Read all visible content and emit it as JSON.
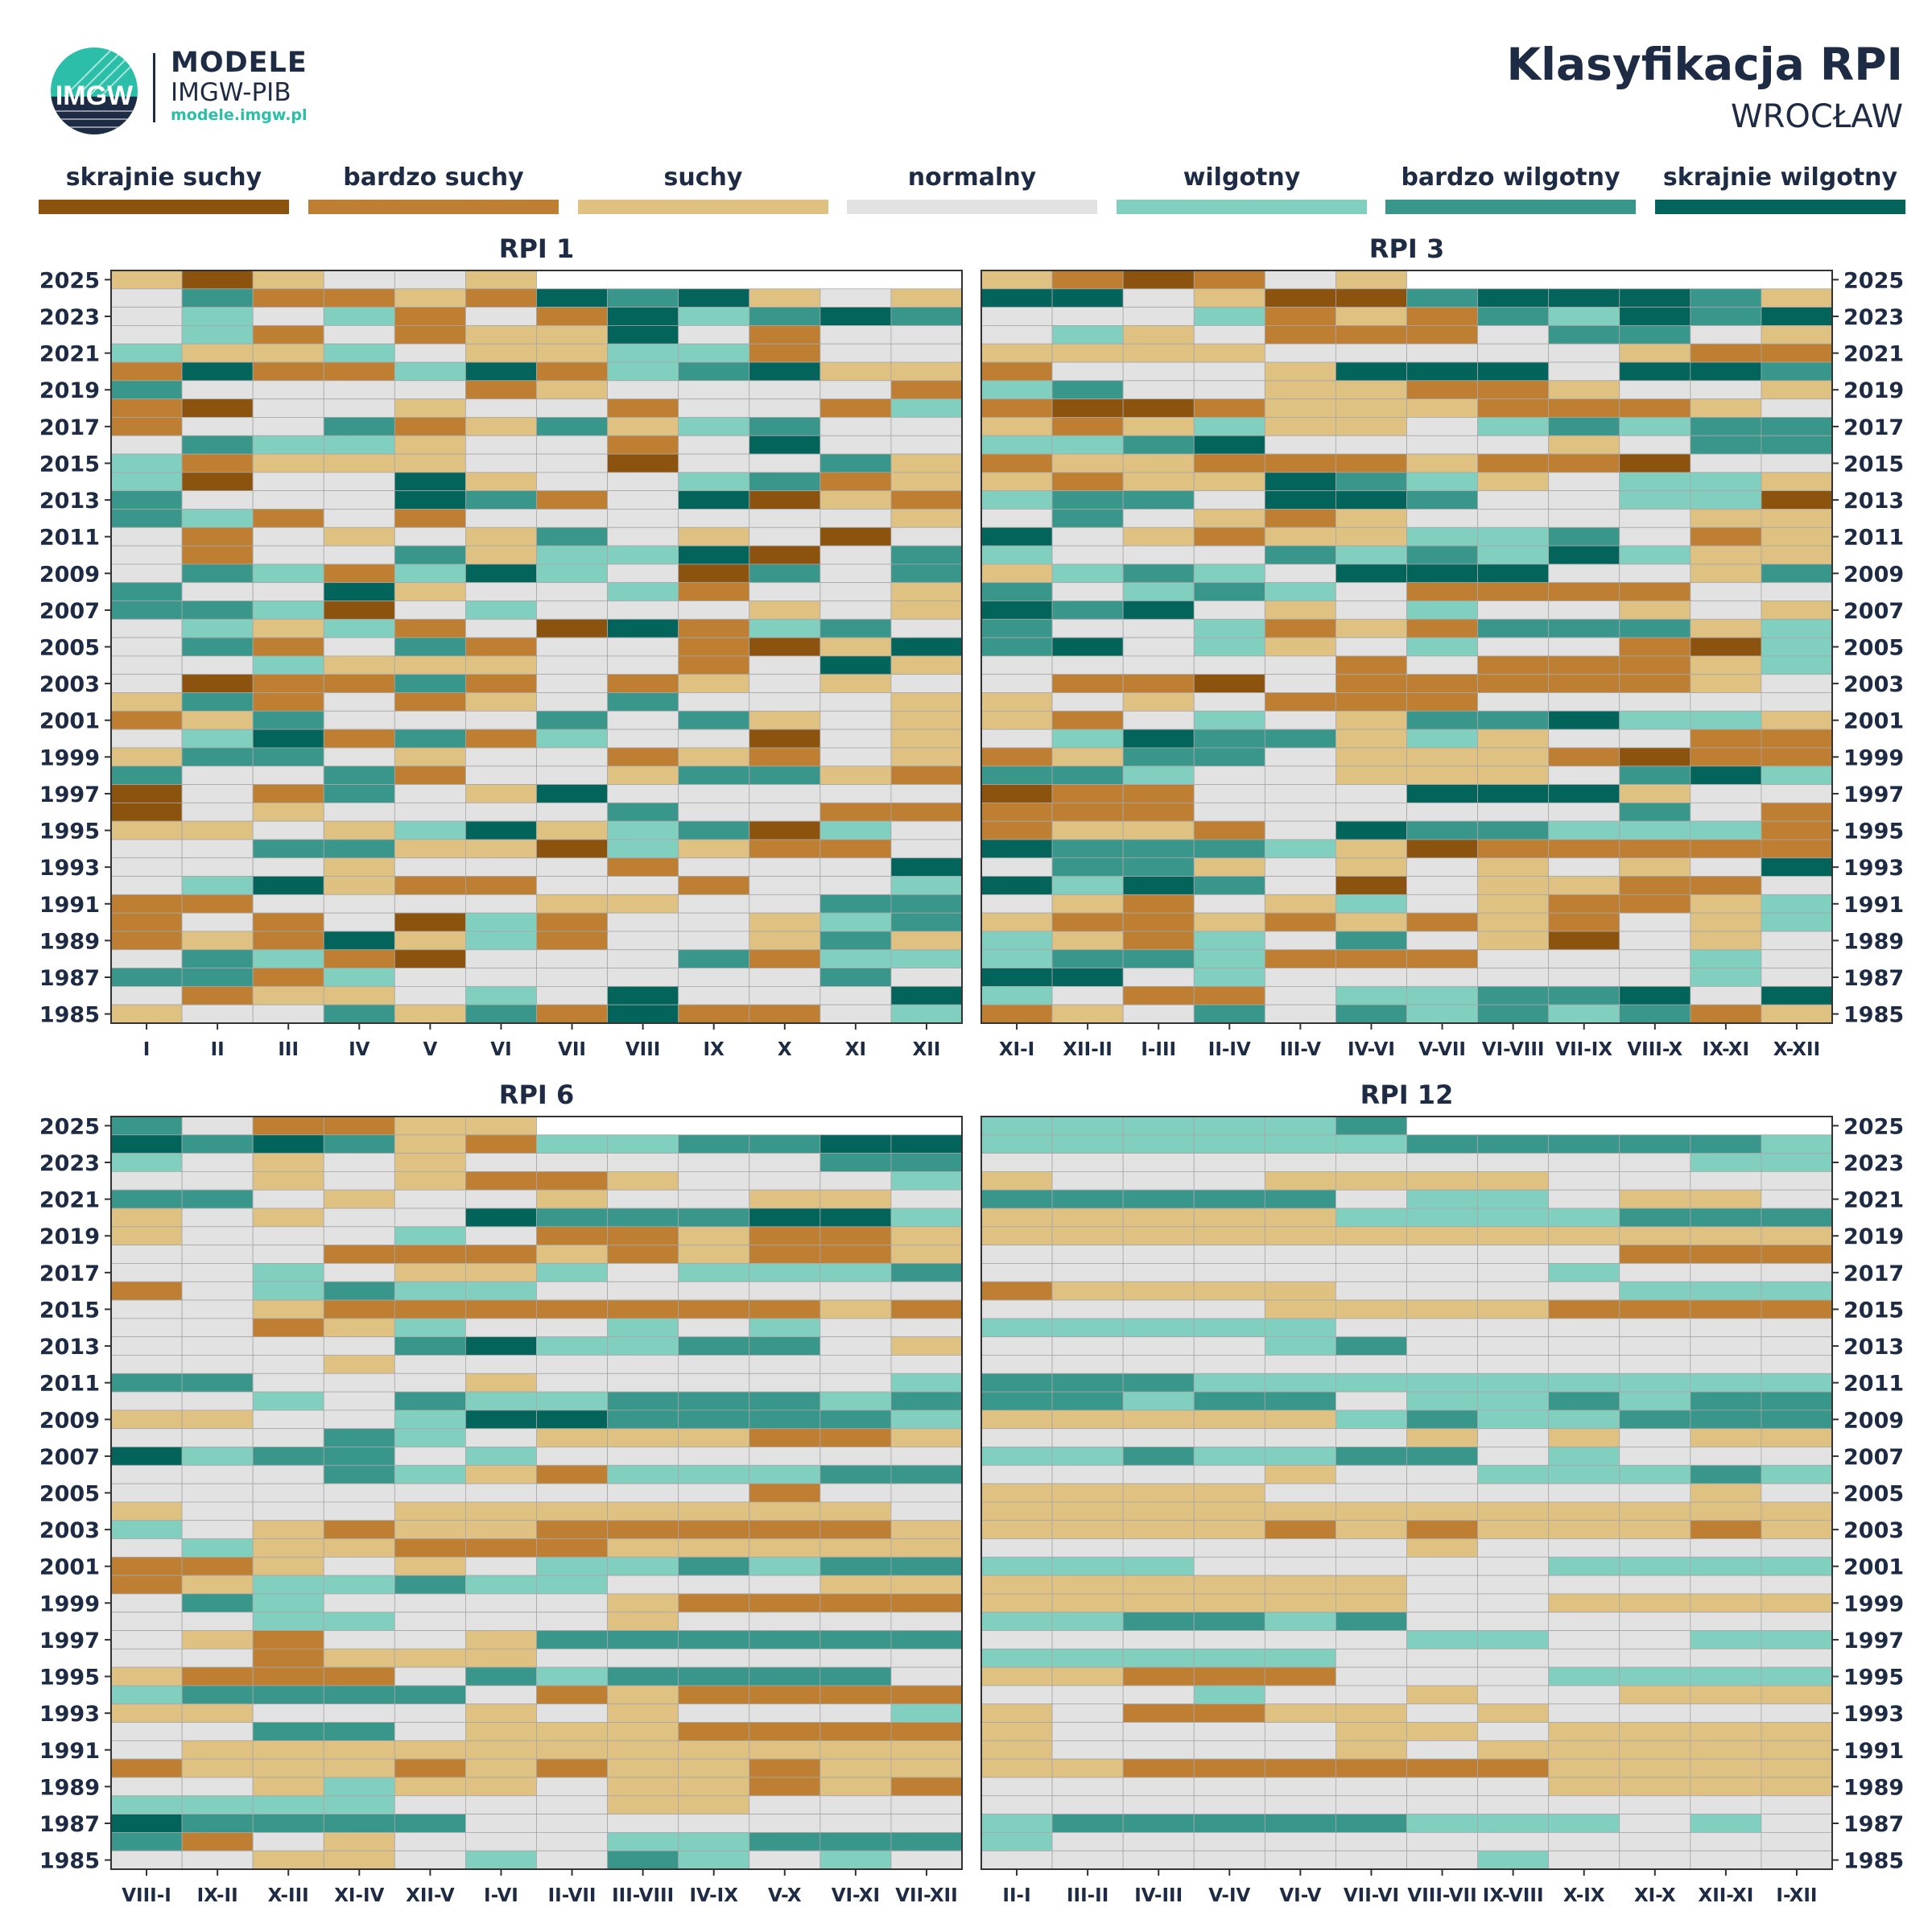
{
  "header": {
    "brand_name": "MODELE",
    "brand_org": "IMGW-PIB",
    "brand_url": "modele.imgw.pl",
    "logo_text": "IMGW",
    "title": "Klasyfikacja RPI",
    "subtitle": "WROCŁAW"
  },
  "legend": [
    {
      "label": "skrajnie suchy",
      "color": "#8b530e"
    },
    {
      "label": "bardzo suchy",
      "color": "#be7f32"
    },
    {
      "label": "suchy",
      "color": "#dfc182"
    },
    {
      "label": "normalny",
      "color": "#e2e2e2"
    },
    {
      "label": "wilgotny",
      "color": "#81cfbf"
    },
    {
      "label": "bardzo wilgotny",
      "color": "#38968a"
    },
    {
      "label": "skrajnie wilgotny",
      "color": "#02645a"
    }
  ],
  "chart_data": [
    {
      "type": "heatmap",
      "title": "RPI 1",
      "x_categories": [
        "I",
        "II",
        "III",
        "IV",
        "V",
        "VI",
        "VII",
        "VIII",
        "IX",
        "X",
        "XI",
        "XII"
      ],
      "y_tick_labels": [
        "2025",
        "2023",
        "2021",
        "2019",
        "2017",
        "2015",
        "2013",
        "2011",
        "2009",
        "2007",
        "2005",
        "2003",
        "2001",
        "1999",
        "1997",
        "1995",
        "1993",
        "1991",
        "1989",
        "1987",
        "1985"
      ],
      "year_range": [
        1985,
        2025
      ],
      "class_index": "0=skrajnie suchy, 1=bardzo suchy, 2=suchy, 3=normalny, 4=wilgotny, 5=bardzo wilgotny, 6=skrajnie wilgotny, -1=brak",
      "rows_top_to_bottom": [
        "2025:2,0,2,3,3,2",
        "2024:3,5,1,1,2,1,6,5,6,2,3,2",
        "2023:3,4,3,4,1,3,1,6,4,5,6,5",
        "2022:3,4,1,3,1,2,2,6,3,1,3,3",
        "2021:4,2,2,4,3,2,2,4,4,1,3,3",
        "2020:1,6,1,1,4,6,1,4,5,6,2,2",
        "2019:5,3,3,3,3,1,2,3,3,3,3,1",
        "2018:1,0,3,3,2,3,3,1,3,3,1,4",
        "2017:1,3,3,5,1,2,5,2,4,5,3,3",
        "2016:3,5,4,4,2,3,3,1,3,6,3,3",
        "2015:4,1,2,2,2,3,3,0,3,3,5,2",
        "2014:4,0,3,3,6,2,3,3,4,5,1,2",
        "2013:5,3,3,3,6,5,1,3,6,0,2,1",
        "2012:5,4,1,3,1,3,3,3,3,3,3,2",
        "2011:3,1,3,2,3,2,5,3,2,3,0,3",
        "2010:3,1,3,3,5,2,4,4,6,0,3,5",
        "2009:3,5,4,1,4,6,4,3,0,5,3,5",
        "2008:5,3,3,6,2,3,3,4,1,3,3,2",
        "2007:5,5,4,0,3,4,3,3,3,2,3,2",
        "2006:3,4,2,4,1,3,0,6,1,4,5,3",
        "2005:3,5,1,3,5,1,3,3,1,0,2,6",
        "2004:3,3,4,2,2,2,3,3,1,3,6,2",
        "2003:3,0,1,1,5,1,3,1,2,3,2,3",
        "2002:2,5,1,3,1,2,3,5,3,3,3,2",
        "2001:1,2,5,3,3,3,5,3,5,2,3,2",
        "2000:3,4,6,1,5,1,4,3,3,0,3,2",
        "1999:2,5,5,3,2,3,3,1,2,1,3,2",
        "1998:5,3,3,5,1,3,3,2,5,5,2,1",
        "1997:0,3,1,5,3,2,6,3,3,3,3,3",
        "1996:0,3,2,3,3,3,3,5,3,3,1,1",
        "1995:2,2,3,2,4,6,2,4,5,0,4,3",
        "1994:3,3,5,5,2,2,0,4,2,1,1,3",
        "1993:3,3,3,2,3,3,3,1,3,3,3,6",
        "1992:3,4,6,2,1,1,3,3,1,3,3,4",
        "1991:1,1,3,3,3,3,2,2,3,3,5,5",
        "1990:1,3,1,3,0,4,1,3,3,2,4,5",
        "1989:1,2,1,6,2,4,1,3,3,2,5,2",
        "1988:3,5,4,1,0,3,3,3,5,1,4,4",
        "1987:5,5,1,4,3,3,3,3,3,3,5,3",
        "1986:3,1,2,2,3,4,3,6,3,3,3,6",
        "1985:2,3,3,5,2,5,1,6,1,1,3,4"
      ]
    },
    {
      "type": "heatmap",
      "title": "RPI 3",
      "x_categories": [
        "XI-I",
        "XII-II",
        "I-III",
        "II-IV",
        "III-V",
        "IV-VI",
        "V-VII",
        "VI-VIII",
        "VII-IX",
        "VIII-X",
        "IX-XI",
        "X-XII"
      ],
      "y_tick_labels": [
        "2025",
        "2023",
        "2021",
        "2019",
        "2017",
        "2015",
        "2013",
        "2011",
        "2009",
        "2007",
        "2005",
        "2003",
        "2001",
        "1999",
        "1997",
        "1995",
        "1993",
        "1991",
        "1989",
        "1987",
        "1985"
      ],
      "year_range": [
        1985,
        2025
      ],
      "class_index": "0=skrajnie suchy, 1=bardzo suchy, 2=suchy, 3=normalny, 4=wilgotny, 5=bardzo wilgotny, 6=skrajnie wilgotny, -1=brak",
      "rows_top_to_bottom": [
        "2025:2,1,0,1,3,2",
        "2024:6,6,3,2,0,0,5,6,6,6,5,2",
        "2023:3,3,3,4,1,2,1,5,4,6,5,6",
        "2022:3,4,2,3,1,1,1,3,5,5,3,2",
        "2021:2,2,2,2,3,3,3,3,3,2,1,1",
        "2020:1,3,3,3,2,6,6,6,3,6,6,5",
        "2019:4,5,3,3,2,2,1,1,2,3,3,2",
        "2018:1,0,0,1,2,2,2,1,1,1,2,3",
        "2017:2,1,2,4,2,2,3,4,5,4,5,5",
        "2016:4,4,5,6,3,3,3,3,2,3,5,5",
        "2015:1,2,2,1,1,1,2,1,1,0,3,3",
        "2014:2,1,2,2,6,5,4,2,3,4,4,2",
        "2013:4,5,5,3,6,6,5,3,3,4,4,0",
        "2012:3,5,3,2,1,2,3,3,3,3,2,2",
        "2011:6,3,2,1,2,2,4,4,5,3,1,2",
        "2010:4,3,3,3,5,4,5,4,6,4,2,2",
        "2009:2,4,5,4,3,6,6,6,3,3,2,5",
        "2008:5,3,4,5,4,3,1,1,1,1,3,3",
        "2007:6,5,6,3,2,3,4,3,3,2,3,2",
        "2006:5,3,3,4,1,2,1,5,5,5,2,4",
        "2005:5,6,3,4,2,3,4,3,3,1,0,4",
        "2004:3,3,3,3,3,1,3,1,1,1,2,4",
        "2003:3,1,1,0,3,1,1,1,1,1,2,3",
        "2002:2,3,2,3,1,1,1,3,3,3,3,3",
        "2001:2,1,3,4,3,2,5,5,6,4,4,2",
        "2000:3,4,6,5,5,2,4,2,3,3,1,1",
        "1999:1,2,5,5,3,2,2,2,1,0,1,1",
        "1998:5,5,4,3,3,2,2,2,3,5,6,4",
        "1997:0,1,1,3,3,3,6,6,6,2,3,3",
        "1996:1,1,1,3,3,3,3,3,3,5,3,1",
        "1995:1,2,2,1,3,6,5,5,4,4,4,1",
        "1994:6,5,5,5,4,2,0,1,1,1,1,1",
        "1993:3,5,5,2,3,2,3,2,3,2,3,6",
        "1992:6,4,6,5,3,0,3,2,2,1,1,3",
        "1991:3,2,1,3,2,4,3,2,1,1,2,4",
        "1990:2,1,1,2,1,2,1,2,1,3,2,4",
        "1989:4,2,1,4,3,5,3,2,0,3,2,3",
        "1988:4,5,5,4,1,1,1,3,3,3,4,3",
        "1987:6,6,3,4,3,3,3,3,3,3,4,3",
        "1986:4,3,1,1,3,4,4,5,5,6,3,6",
        "1985:1,2,3,5,3,5,4,5,4,5,1,2"
      ]
    },
    {
      "type": "heatmap",
      "title": "RPI 6",
      "x_categories": [
        "VIII-I",
        "IX-II",
        "X-III",
        "XI-IV",
        "XII-V",
        "I-VI",
        "II-VII",
        "III-VIII",
        "IV-IX",
        "V-X",
        "VI-XI",
        "VII-XII"
      ],
      "y_tick_labels": [
        "2025",
        "2023",
        "2021",
        "2019",
        "2017",
        "2015",
        "2013",
        "2011",
        "2009",
        "2007",
        "2005",
        "2003",
        "2001",
        "1999",
        "1997",
        "1995",
        "1993",
        "1991",
        "1989",
        "1987",
        "1985"
      ],
      "year_range": [
        1985,
        2025
      ],
      "class_index": "0=skrajnie suchy, 1=bardzo suchy, 2=suchy, 3=normalny, 4=wilgotny, 5=bardzo wilgotny, 6=skrajnie wilgotny, -1=brak",
      "rows_top_to_bottom": [
        "2025:5,3,1,1,2,2",
        "2024:6,5,6,5,2,1,4,4,5,5,6,6",
        "2023:4,3,2,3,2,3,3,3,3,3,5,5",
        "2022:3,3,2,3,2,1,1,2,3,3,3,4",
        "2021:5,5,3,2,3,3,2,3,3,2,2,3",
        "2020:2,3,2,3,3,6,5,5,5,6,6,4",
        "2019:2,3,3,3,4,3,1,1,2,1,1,2",
        "2018:3,3,3,1,1,1,2,1,2,1,1,2",
        "2017:3,3,4,3,2,2,4,3,4,4,4,5",
        "2016:1,3,4,5,4,4,3,3,3,3,3,3",
        "2015:3,3,2,1,1,1,1,1,1,1,2,1",
        "2014:3,3,1,2,4,3,3,4,3,4,3,3",
        "2013:3,3,3,3,5,6,4,4,5,5,3,2",
        "2012:3,3,3,2,3,3,3,3,3,3,3,3",
        "2011:5,5,3,3,3,2,3,3,3,3,3,4",
        "2010:3,3,4,3,5,4,4,5,5,5,4,5",
        "2009:2,2,3,3,4,6,6,5,5,5,5,4",
        "2008:3,3,3,5,4,3,2,2,2,1,1,2",
        "2007:6,4,5,5,3,4,3,3,3,3,3,3",
        "2006:3,3,3,5,4,2,1,4,4,4,5,5",
        "2005:3,3,3,3,3,3,3,3,3,1,3,3",
        "2004:2,3,3,3,2,2,2,2,2,2,2,3",
        "2003:4,3,2,1,2,2,1,1,1,1,1,2",
        "2002:3,4,2,2,1,1,1,2,2,2,2,2",
        "2001:1,1,2,3,2,3,4,4,5,4,5,5",
        "2000:1,2,4,4,5,4,4,3,3,3,2,2",
        "1999:3,5,4,3,3,3,3,2,1,1,1,1",
        "1998:3,3,4,4,3,3,3,2,3,3,3,3",
        "1997:3,2,1,3,3,2,5,5,5,5,5,5",
        "1996:3,3,1,2,2,2,3,3,3,3,3,3",
        "1995:2,1,1,1,3,5,4,5,5,5,5,3",
        "1994:4,5,5,5,5,3,1,2,1,1,1,1",
        "1993:2,2,3,3,3,2,3,2,3,3,3,4",
        "1992:3,3,5,5,3,2,2,2,1,1,1,1",
        "1991:3,2,2,2,2,2,2,2,2,2,2,2",
        "1990:1,2,2,2,1,2,1,2,2,1,2,2",
        "1989:3,3,2,4,2,2,3,2,2,1,2,1",
        "1988:4,4,4,4,3,3,3,2,2,3,3,3",
        "1987:6,5,5,5,5,3,3,3,3,3,3,3",
        "1986:5,1,3,2,3,3,3,4,4,5,5,5",
        "1985:3,3,2,2,3,4,3,5,4,3,4,3"
      ]
    },
    {
      "type": "heatmap",
      "title": "RPI 12",
      "x_categories": [
        "II-I",
        "III-II",
        "IV-III",
        "V-IV",
        "VI-V",
        "VII-VI",
        "VIII-VII",
        "IX-VIII",
        "X-IX",
        "XI-X",
        "XII-XI",
        "I-XII"
      ],
      "y_tick_labels": [
        "2025",
        "2023",
        "2021",
        "2019",
        "2017",
        "2015",
        "2013",
        "2011",
        "2009",
        "2007",
        "2005",
        "2003",
        "2001",
        "1999",
        "1997",
        "1995",
        "1993",
        "1991",
        "1989",
        "1987",
        "1985"
      ],
      "year_range": [
        1985,
        2025
      ],
      "class_index": "0=skrajnie suchy, 1=bardzo suchy, 2=suchy, 3=normalny, 4=wilgotny, 5=bardzo wilgotny, 6=skrajnie wilgotny, -1=brak",
      "rows_top_to_bottom": [
        "2025:4,4,4,4,4,5",
        "2024:4,4,4,4,4,4,5,5,5,5,5,4",
        "2023:3,3,3,3,3,3,3,3,3,3,4,4",
        "2022:2,3,3,3,2,2,2,2,3,3,3,3",
        "2021:5,5,5,5,5,3,4,4,3,2,2,3",
        "2020:2,2,2,2,2,4,4,4,4,5,5,5",
        "2019:2,2,2,2,2,2,2,2,2,2,2,2",
        "2018:3,3,3,3,3,3,3,3,3,1,1,1",
        "2017:3,3,3,3,3,3,3,3,4,3,3,3",
        "2016:1,2,2,2,2,3,3,3,3,4,4,4",
        "2015:3,3,3,3,2,2,2,2,1,1,1,1",
        "2014:4,4,4,4,4,3,3,3,3,3,3,3",
        "2013:3,3,3,3,4,5,3,3,3,3,3,3",
        "2012:3,3,3,3,3,3,3,3,3,3,3,3",
        "2011:5,5,5,4,4,4,4,4,4,4,4,4",
        "2010:5,5,4,5,5,3,4,4,5,4,5,5",
        "2009:2,2,2,2,2,4,5,4,4,5,5,5",
        "2008:3,3,3,3,3,3,2,3,2,3,2,2",
        "2007:4,4,5,4,4,5,5,3,4,3,3,3",
        "2006:3,3,3,3,2,3,3,4,4,4,5,4",
        "2005:2,2,2,2,3,3,3,3,3,3,2,3",
        "2004:2,2,2,2,2,2,2,2,2,2,2,2",
        "2003:2,2,2,2,1,2,1,2,2,2,1,2",
        "2002:3,3,3,3,3,3,2,3,3,3,3,3",
        "2001:4,4,4,3,3,3,3,3,4,4,4,4",
        "2000:2,2,2,2,2,2,3,3,3,3,3,3",
        "1999:2,2,2,2,2,2,3,3,2,2,2,2",
        "1998:4,4,5,5,4,5,3,3,3,3,3,3",
        "1997:3,3,3,3,3,3,4,4,3,3,4,4",
        "1996:4,4,4,4,4,3,3,3,3,3,3,3",
        "1995:2,2,1,1,1,3,3,3,4,4,4,4",
        "1994:3,3,3,4,3,3,2,3,3,2,2,2",
        "1993:2,3,1,1,2,2,3,2,3,3,3,3",
        "1992:2,3,3,3,3,2,2,3,2,2,2,2",
        "1991:2,3,3,3,3,2,3,2,2,2,2,2",
        "1990:2,2,1,1,1,1,1,1,2,2,2,2",
        "1989:3,3,3,3,3,3,3,3,2,2,2,2",
        "1988:3,3,3,3,3,3,3,3,3,3,3,3",
        "1987:4,5,5,5,5,5,4,4,4,3,4,3",
        "1986:4,3,3,3,3,3,3,3,3,3,3,3",
        "1985:3,3,3,3,3,3,3,4,3,3,3,3"
      ]
    }
  ]
}
